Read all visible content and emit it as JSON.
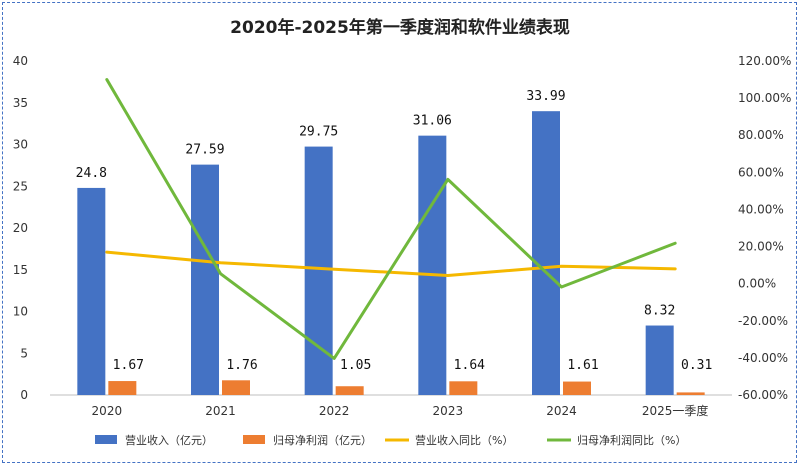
{
  "chart_data": {
    "type": "bar",
    "title": "2020年-2025年第一季度润和软件业绩表现",
    "categories": [
      "2020",
      "2021",
      "2022",
      "2023",
      "2024",
      "2025一季度"
    ],
    "series": [
      {
        "name": "营业收入（亿元）",
        "type": "bar",
        "axis": "left",
        "color": "#4472c4",
        "values": [
          24.8,
          27.59,
          29.75,
          31.06,
          33.99,
          8.32
        ],
        "labels": [
          "24.8",
          "27.59",
          "29.75",
          "31.06",
          "33.99",
          "8.32"
        ]
      },
      {
        "name": "归母净利润（亿元）",
        "type": "bar",
        "axis": "left",
        "color": "#ed7d31",
        "values": [
          1.67,
          1.76,
          1.05,
          1.64,
          1.61,
          0.31
        ],
        "labels": [
          "1.67",
          "1.76",
          "1.05",
          "1.64",
          "1.61",
          "0.31"
        ]
      },
      {
        "name": "营业收入同比（%）",
        "type": "line",
        "axis": "right",
        "color": "#f5b800",
        "values": [
          17.0,
          11.3,
          7.8,
          4.4,
          9.4,
          8.0
        ]
      },
      {
        "name": "归母净利润同比（%）",
        "type": "line",
        "axis": "right",
        "color": "#70b83c",
        "values": [
          110.0,
          5.4,
          -40.3,
          56.2,
          -1.8,
          21.8
        ]
      }
    ],
    "y_left": {
      "min": 0,
      "max": 40,
      "step": 5,
      "ticks": [
        "0",
        "5",
        "10",
        "15",
        "20",
        "25",
        "30",
        "35",
        "40"
      ]
    },
    "y_right": {
      "min": -60,
      "max": 120,
      "step": 20,
      "ticks": [
        "-60.00%",
        "-40.00%",
        "-20.00%",
        "0.00%",
        "20.00%",
        "40.00%",
        "60.00%",
        "80.00%",
        "100.00%",
        "120.00%"
      ]
    },
    "legend_position": "bottom",
    "grid": false
  }
}
